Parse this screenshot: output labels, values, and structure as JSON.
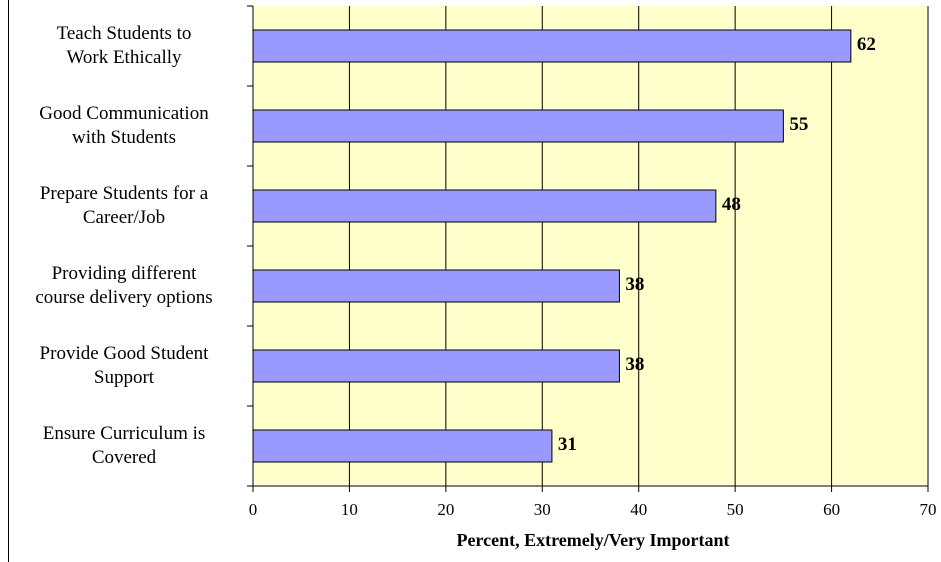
{
  "chart_data": {
    "type": "bar",
    "orientation": "horizontal",
    "categories": [
      "Teach Students to\nWork Ethically",
      "Good Communication\nwith Students",
      "Prepare Students for a\nCareer/Job",
      "Providing different\ncourse delivery options",
      "Provide Good Student\nSupport",
      "Ensure Curriculum is\nCovered"
    ],
    "values": [
      62,
      55,
      48,
      38,
      38,
      31
    ],
    "value_labels": [
      "62",
      "55",
      "48",
      "38",
      "38",
      "31"
    ],
    "xlabel": "Percent, Extremely/Very Important",
    "ylabel": "",
    "xlim": [
      0,
      70
    ],
    "xticks": [
      "0",
      "10",
      "20",
      "30",
      "40",
      "50",
      "60",
      "70"
    ],
    "grid": "vertical",
    "legend": "none"
  },
  "colors": {
    "bar_fill": "#9999ff",
    "bar_stroke": "#000000",
    "plot_bg": "#ffffcc",
    "grid": "#000000"
  }
}
